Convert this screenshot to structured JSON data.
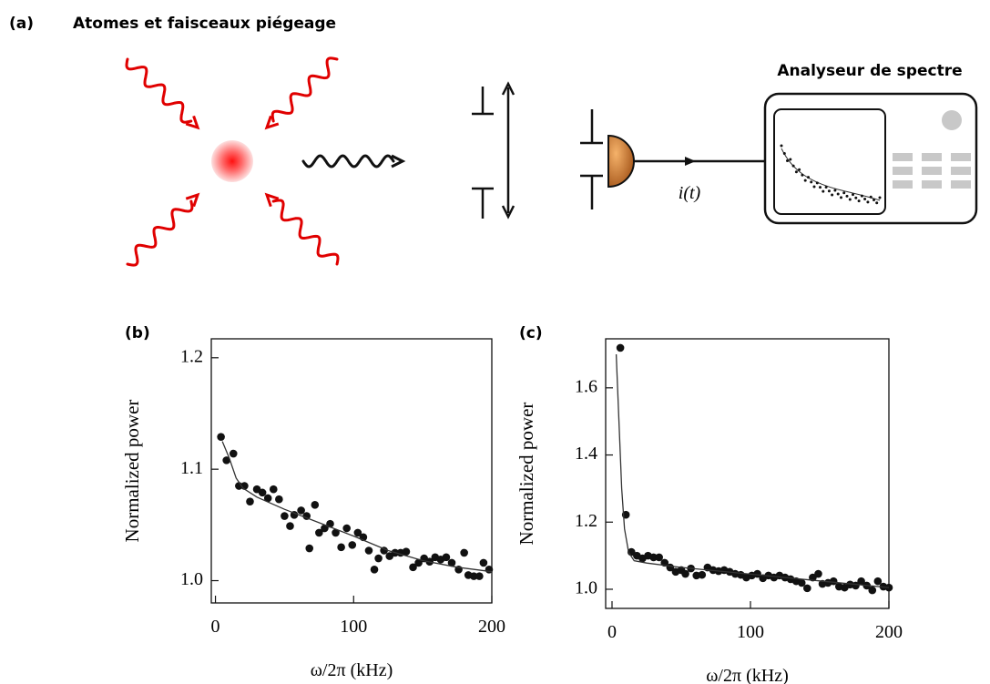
{
  "panel_a": {
    "label": "(a)",
    "title": "Atomes et faisceaux piégeage",
    "analyzer": "Analyseur de spectre",
    "signal": "i(t)"
  },
  "chart_data": [
    {
      "type": "scatter",
      "panel": "(b)",
      "ylabel": "Normalized power",
      "xlabel": "ω/2π (kHz)",
      "xlim": [
        -3,
        200
      ],
      "ylim": [
        0.98,
        1.217
      ],
      "xticks": [
        0,
        100,
        200
      ],
      "yticks": [
        {
          "value": 1,
          "label": "1.0"
        },
        1.1,
        1.2
      ],
      "series": [
        {
          "mode": "markers",
          "color": "#111111",
          "x": [
            4,
            8,
            13,
            17,
            21,
            25,
            30,
            34,
            38,
            42,
            46,
            50,
            54,
            57,
            62,
            66,
            68,
            72,
            75,
            79,
            83,
            87,
            91,
            95,
            99,
            103,
            107,
            111,
            115,
            118,
            122,
            126,
            130,
            134,
            138,
            143,
            147,
            151,
            155,
            159,
            163,
            167,
            171,
            176,
            180,
            183,
            187,
            191,
            194,
            198
          ],
          "values": [
            1.129,
            1.108,
            1.114,
            1.085,
            1.085,
            1.071,
            1.082,
            1.079,
            1.074,
            1.082,
            1.073,
            1.058,
            1.049,
            1.059,
            1.063,
            1.058,
            1.029,
            1.068,
            1.043,
            1.047,
            1.051,
            1.043,
            1.03,
            1.047,
            1.032,
            1.043,
            1.039,
            1.027,
            1.01,
            1.02,
            1.027,
            1.022,
            1.025,
            1.025,
            1.026,
            1.012,
            1.016,
            1.02,
            1.017,
            1.021,
            1.019,
            1.021,
            1.016,
            1.01,
            1.025,
            1.005,
            1.004,
            1.004,
            1.016,
            1.01
          ]
        },
        {
          "mode": "line",
          "color": "#333333",
          "x": [
            5,
            10,
            15,
            20,
            30,
            50,
            75,
            100,
            125,
            150,
            175,
            200
          ],
          "values": [
            1.125,
            1.11,
            1.092,
            1.083,
            1.075,
            1.064,
            1.052,
            1.04,
            1.027,
            1.018,
            1.012,
            1.008
          ]
        }
      ]
    },
    {
      "type": "scatter",
      "panel": "(c)",
      "ylabel": "Normalized power",
      "xlabel": "ω/2π (kHz)",
      "xlim": [
        -4.6,
        200
      ],
      "ylim": [
        0.943,
        1.746
      ],
      "xticks": [
        0,
        100,
        200
      ],
      "yticks": [
        {
          "value": 1,
          "label": "1.0"
        },
        1.2,
        1.4,
        1.6
      ],
      "series": [
        {
          "mode": "markers",
          "color": "#111111",
          "x": [
            6,
            10,
            14,
            18,
            22,
            26,
            30,
            34,
            38,
            42,
            46,
            50,
            53,
            57,
            61,
            65,
            69,
            73,
            77,
            81,
            85,
            89,
            93,
            97,
            101,
            105,
            109,
            113,
            117,
            121,
            125,
            129,
            133,
            137,
            141,
            145,
            149,
            152,
            156,
            160,
            164,
            168,
            172,
            176,
            180,
            184,
            188,
            192,
            196,
            200
          ],
          "values": [
            1.719,
            1.222,
            1.111,
            1.1,
            1.092,
            1.1,
            1.095,
            1.095,
            1.079,
            1.065,
            1.052,
            1.057,
            1.046,
            1.062,
            1.041,
            1.043,
            1.065,
            1.057,
            1.054,
            1.057,
            1.052,
            1.046,
            1.043,
            1.035,
            1.041,
            1.046,
            1.033,
            1.041,
            1.035,
            1.041,
            1.035,
            1.03,
            1.024,
            1.019,
            1.003,
            1.035,
            1.046,
            1.016,
            1.019,
            1.024,
            1.008,
            1.005,
            1.014,
            1.011,
            1.024,
            1.011,
            0.997,
            1.024,
            1.008,
            1.005
          ]
        },
        {
          "mode": "line",
          "color": "#333333",
          "x": [
            3,
            5,
            7,
            9,
            12,
            16,
            25,
            50,
            100,
            150,
            200
          ],
          "values": [
            1.7,
            1.5,
            1.3,
            1.18,
            1.11,
            1.085,
            1.078,
            1.065,
            1.045,
            1.025,
            1.005
          ]
        }
      ]
    }
  ]
}
